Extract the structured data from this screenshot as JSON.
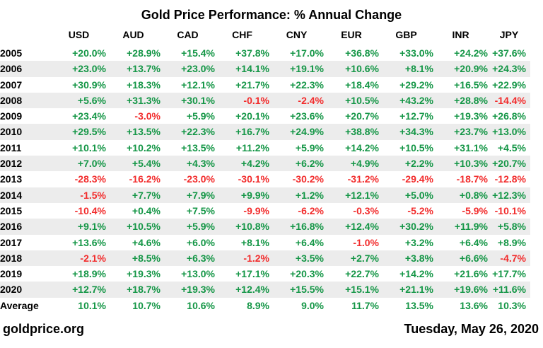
{
  "title": "Gold Price Performance: % Annual Change",
  "columns": [
    "USD",
    "AUD",
    "CAD",
    "CHF",
    "CNY",
    "EUR",
    "GBP",
    "INR",
    "JPY"
  ],
  "rows": [
    {
      "label": "2005",
      "values": [
        "+20.0%",
        "+28.9%",
        "+15.4%",
        "+37.8%",
        "+17.0%",
        "+36.8%",
        "+33.0%",
        "+24.2%",
        "+37.6%"
      ]
    },
    {
      "label": "2006",
      "values": [
        "+23.0%",
        "+13.7%",
        "+23.0%",
        "+14.1%",
        "+19.1%",
        "+10.6%",
        "+8.1%",
        "+20.9%",
        "+24.3%"
      ]
    },
    {
      "label": "2007",
      "values": [
        "+30.9%",
        "+18.3%",
        "+12.1%",
        "+21.7%",
        "+22.3%",
        "+18.4%",
        "+29.2%",
        "+16.5%",
        "+22.9%"
      ]
    },
    {
      "label": "2008",
      "values": [
        "+5.6%",
        "+31.3%",
        "+30.1%",
        "-0.1%",
        "-2.4%",
        "+10.5%",
        "+43.2%",
        "+28.8%",
        "-14.4%"
      ]
    },
    {
      "label": "2009",
      "values": [
        "+23.4%",
        "-3.0%",
        "+5.9%",
        "+20.1%",
        "+23.6%",
        "+20.7%",
        "+12.7%",
        "+19.3%",
        "+26.8%"
      ]
    },
    {
      "label": "2010",
      "values": [
        "+29.5%",
        "+13.5%",
        "+22.3%",
        "+16.7%",
        "+24.9%",
        "+38.8%",
        "+34.3%",
        "+23.7%",
        "+13.0%"
      ]
    },
    {
      "label": "2011",
      "values": [
        "+10.1%",
        "+10.2%",
        "+13.5%",
        "+11.2%",
        "+5.9%",
        "+14.2%",
        "+10.5%",
        "+31.1%",
        "+4.5%"
      ]
    },
    {
      "label": "2012",
      "values": [
        "+7.0%",
        "+5.4%",
        "+4.3%",
        "+4.2%",
        "+6.2%",
        "+4.9%",
        "+2.2%",
        "+10.3%",
        "+20.7%"
      ]
    },
    {
      "label": "2013",
      "values": [
        "-28.3%",
        "-16.2%",
        "-23.0%",
        "-30.1%",
        "-30.2%",
        "-31.2%",
        "-29.4%",
        "-18.7%",
        "-12.8%"
      ]
    },
    {
      "label": "2014",
      "values": [
        "-1.5%",
        "+7.7%",
        "+7.9%",
        "+9.9%",
        "+1.2%",
        "+12.1%",
        "+5.0%",
        "+0.8%",
        "+12.3%"
      ]
    },
    {
      "label": "2015",
      "values": [
        "-10.4%",
        "+0.4%",
        "+7.5%",
        "-9.9%",
        "-6.2%",
        "-0.3%",
        "-5.2%",
        "-5.9%",
        "-10.1%"
      ]
    },
    {
      "label": "2016",
      "values": [
        "+9.1%",
        "+10.5%",
        "+5.9%",
        "+10.8%",
        "+16.8%",
        "+12.4%",
        "+30.2%",
        "+11.9%",
        "+5.8%"
      ]
    },
    {
      "label": "2017",
      "values": [
        "+13.6%",
        "+4.6%",
        "+6.0%",
        "+8.1%",
        "+6.4%",
        "-1.0%",
        "+3.2%",
        "+6.4%",
        "+8.9%"
      ]
    },
    {
      "label": "2018",
      "values": [
        "-2.1%",
        "+8.5%",
        "+6.3%",
        "-1.2%",
        "+3.5%",
        "+2.7%",
        "+3.8%",
        "+6.6%",
        "-4.7%"
      ]
    },
    {
      "label": "2019",
      "values": [
        "+18.9%",
        "+19.3%",
        "+13.0%",
        "+17.1%",
        "+20.3%",
        "+22.7%",
        "+14.2%",
        "+21.6%",
        "+17.7%"
      ]
    },
    {
      "label": "2020",
      "values": [
        "+12.7%",
        "+18.7%",
        "+19.3%",
        "+12.4%",
        "+15.5%",
        "+15.1%",
        "+21.1%",
        "+19.6%",
        "+11.6%"
      ]
    },
    {
      "label": "Average",
      "values": [
        "10.1%",
        "10.7%",
        "10.6%",
        "8.9%",
        "9.0%",
        "11.7%",
        "13.5%",
        "13.6%",
        "10.3%"
      ]
    }
  ],
  "footer": {
    "source": "goldprice.org",
    "date": "Tuesday, May 26, 2020"
  },
  "colors": {
    "positive": "#149646",
    "negative": "#f22c2c",
    "stripe": "#ececec"
  },
  "chart_data": {
    "type": "table",
    "title": "Gold Price Performance: % Annual Change",
    "categories": [
      "2005",
      "2006",
      "2007",
      "2008",
      "2009",
      "2010",
      "2011",
      "2012",
      "2013",
      "2014",
      "2015",
      "2016",
      "2017",
      "2018",
      "2019",
      "2020",
      "Average"
    ],
    "unit": "% annual change",
    "series": [
      {
        "name": "USD",
        "values": [
          20.0,
          23.0,
          30.9,
          5.6,
          23.4,
          29.5,
          10.1,
          7.0,
          -28.3,
          -1.5,
          -10.4,
          9.1,
          13.6,
          -2.1,
          18.9,
          12.7,
          10.1
        ]
      },
      {
        "name": "AUD",
        "values": [
          28.9,
          13.7,
          18.3,
          31.3,
          -3.0,
          13.5,
          10.2,
          5.4,
          -16.2,
          7.7,
          0.4,
          10.5,
          4.6,
          8.5,
          19.3,
          18.7,
          10.7
        ]
      },
      {
        "name": "CAD",
        "values": [
          15.4,
          23.0,
          12.1,
          30.1,
          5.9,
          22.3,
          13.5,
          4.3,
          -23.0,
          7.9,
          7.5,
          5.9,
          6.0,
          6.3,
          13.0,
          19.3,
          10.6
        ]
      },
      {
        "name": "CHF",
        "values": [
          37.8,
          14.1,
          21.7,
          -0.1,
          20.1,
          16.7,
          11.2,
          4.2,
          -30.1,
          9.9,
          -9.9,
          10.8,
          8.1,
          -1.2,
          17.1,
          12.4,
          8.9
        ]
      },
      {
        "name": "CNY",
        "values": [
          17.0,
          19.1,
          22.3,
          -2.4,
          23.6,
          24.9,
          5.9,
          6.2,
          -30.2,
          1.2,
          -6.2,
          16.8,
          6.4,
          3.5,
          20.3,
          15.5,
          9.0
        ]
      },
      {
        "name": "EUR",
        "values": [
          36.8,
          10.6,
          18.4,
          10.5,
          20.7,
          38.8,
          14.2,
          4.9,
          -31.2,
          12.1,
          -0.3,
          12.4,
          -1.0,
          2.7,
          22.7,
          15.1,
          11.7
        ]
      },
      {
        "name": "GBP",
        "values": [
          33.0,
          8.1,
          29.2,
          43.2,
          12.7,
          34.3,
          10.5,
          2.2,
          -29.4,
          5.0,
          -5.2,
          30.2,
          3.2,
          3.8,
          14.2,
          21.1,
          13.5
        ]
      },
      {
        "name": "INR",
        "values": [
          24.2,
          20.9,
          16.5,
          28.8,
          19.3,
          23.7,
          31.1,
          10.3,
          -18.7,
          0.8,
          -5.9,
          11.9,
          6.4,
          6.6,
          21.6,
          19.6,
          13.6
        ]
      },
      {
        "name": "JPY",
        "values": [
          37.6,
          24.3,
          22.9,
          -14.4,
          26.8,
          13.0,
          4.5,
          20.7,
          -12.8,
          12.3,
          -10.1,
          5.8,
          8.9,
          -4.7,
          17.7,
          11.6,
          10.3
        ]
      }
    ]
  }
}
